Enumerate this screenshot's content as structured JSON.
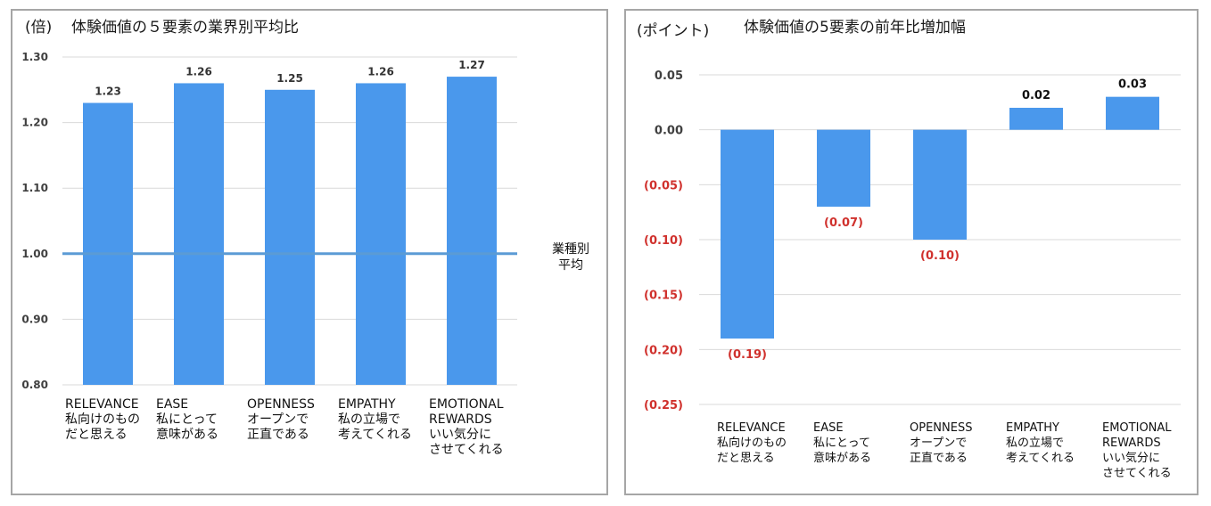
{
  "chart_data": [
    {
      "type": "bar",
      "title": "体験価値の５要素の業界別平均比",
      "unit_label": "(倍)",
      "categories": [
        [
          "RELEVANCE",
          "私向けのもの",
          "だと思える"
        ],
        [
          "EASE",
          "私にとって",
          "意味がある"
        ],
        [
          "OPENNESS",
          "オープンで",
          "正直である"
        ],
        [
          "EMPATHY",
          "私の立場で",
          "考えてくれる"
        ],
        [
          "EMOTIONAL",
          "REWARDS",
          "いい気分に",
          "させてくれる"
        ]
      ],
      "values": [
        1.23,
        1.26,
        1.25,
        1.26,
        1.27
      ],
      "data_labels": [
        "1.23",
        "1.26",
        "1.25",
        "1.26",
        "1.27"
      ],
      "ylim": [
        0.8,
        1.3
      ],
      "yticks": [
        "1.30",
        "1.20",
        "1.10",
        "1.00",
        "0.90",
        "0.80"
      ],
      "ytick_values": [
        1.3,
        1.2,
        1.1,
        1.0,
        0.9,
        0.8
      ],
      "reference_line": {
        "value": 1.0,
        "label": [
          "業種別",
          "平均"
        ]
      },
      "grid": true,
      "colors": {
        "bar": "#4a98ec",
        "reference": "#5b9bd5",
        "grid": "#d9d9d9"
      }
    },
    {
      "type": "bar",
      "title": "体験価値の5要素の前年比増加幅",
      "unit_label": "(ポイント)",
      "categories": [
        [
          "RELEVANCE",
          "私向けのもの",
          "だと思える"
        ],
        [
          "EASE",
          "私にとって",
          "意味がある"
        ],
        [
          "OPENNESS",
          "オープンで",
          "正直である"
        ],
        [
          "EMPATHY",
          "私の立場で",
          "考えてくれる"
        ],
        [
          "EMOTIONAL",
          "REWARDS",
          "いい気分に",
          "させてくれる"
        ]
      ],
      "values": [
        -0.19,
        -0.07,
        -0.1,
        0.02,
        0.03
      ],
      "data_labels": [
        "(0.19)",
        "(0.07)",
        "(0.10)",
        "0.02",
        "0.03"
      ],
      "ylim": [
        -0.25,
        0.05
      ],
      "yticks": [
        "0.05",
        "0.00",
        "(0.05)",
        "(0.10)",
        "(0.15)",
        "(0.20)",
        "(0.25)"
      ],
      "ytick_values": [
        0.05,
        0.0,
        -0.05,
        -0.1,
        -0.15,
        -0.2,
        -0.25
      ],
      "grid": true,
      "colors": {
        "bar": "#4a98ec",
        "negative_text": "#d0312d",
        "grid": "#d9d9d9"
      }
    }
  ]
}
